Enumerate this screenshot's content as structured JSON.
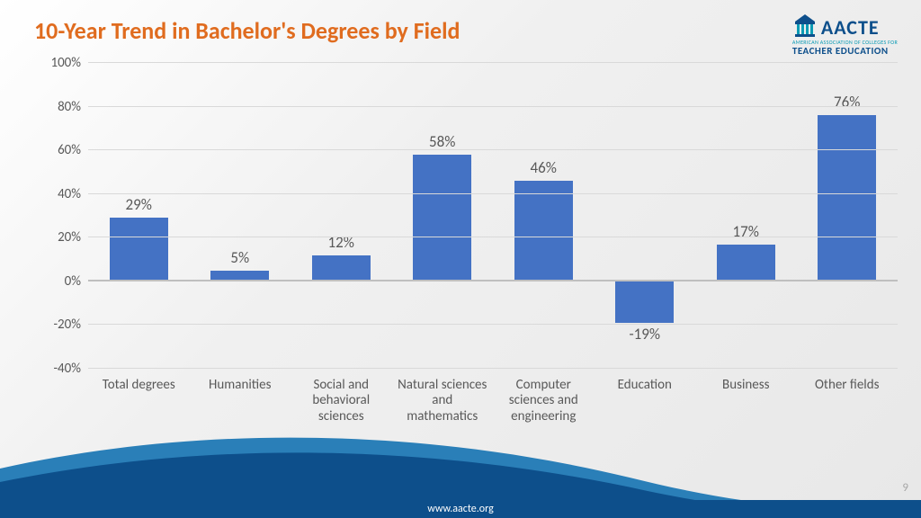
{
  "title": {
    "text": "10-Year Trend in Bachelor's Degrees by Field",
    "color": "#e06c1f",
    "fontsize": 26
  },
  "logo": {
    "brand": "AACTE",
    "sub1": "AMERICAN ASSOCIATION OF COLLEGES FOR",
    "sub2": "TEACHER EDUCATION",
    "color_primary": "#0d4f8b",
    "color_accent": "#0b9bb5"
  },
  "chart": {
    "type": "bar",
    "categories": [
      "Total degrees",
      "Humanities",
      "Social and behavioral sciences",
      "Natural sciences and mathematics",
      "Computer sciences and engineering",
      "Education",
      "Business",
      "Other fields"
    ],
    "values": [
      29,
      5,
      12,
      58,
      46,
      -19,
      17,
      76
    ],
    "value_labels": [
      "29%",
      "5%",
      "12%",
      "58%",
      "46%",
      "-19%",
      "17%",
      "76%"
    ],
    "bar_color": "#4472c4",
    "ylim": [
      -40,
      100
    ],
    "yticks": [
      -40,
      -20,
      0,
      20,
      40,
      60,
      80,
      100
    ],
    "ytick_labels": [
      "-40%",
      "-20%",
      "0%",
      "20%",
      "40%",
      "60%",
      "80%",
      "100%"
    ],
    "grid_color": "#d9d9d9",
    "axis_color": "#bfbfbf",
    "label_fontsize": 15,
    "value_fontsize": 17,
    "text_color": "#595959",
    "bar_width": 0.58
  },
  "footer": {
    "url": "www.aacte.org",
    "bar_color": "#0d4f8b",
    "swoosh_color_dark": "#0d4f8b",
    "swoosh_color_light": "#2a7fb8"
  },
  "page_number": {
    "text": "9",
    "color": "#a6a6a6"
  }
}
